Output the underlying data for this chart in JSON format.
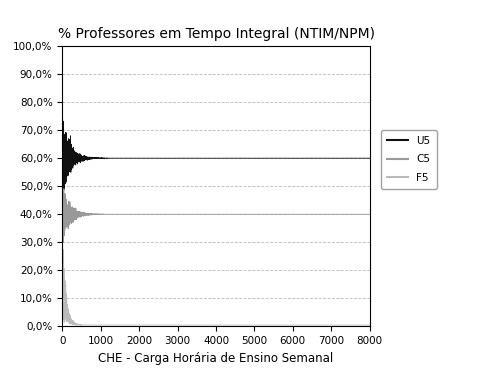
{
  "title": "% Professores em Tempo Integral (NTIM/NPM)",
  "xlabel": "CHE - Carga Horária de Ensino Semanal",
  "xlim": [
    0,
    8000
  ],
  "ylim": [
    0.0,
    1.0
  ],
  "yticks": [
    0.0,
    0.1,
    0.2,
    0.3,
    0.4,
    0.5,
    0.6,
    0.7,
    0.8,
    0.9,
    1.0
  ],
  "ytick_labels": [
    "0,0%",
    "10,0%",
    "20,0%",
    "30,0%",
    "40,0%",
    "50,0%",
    "60,0%",
    "70,0%",
    "80,0%",
    "90,0%",
    "100,0%"
  ],
  "xticks": [
    0,
    1000,
    2000,
    3000,
    4000,
    5000,
    6000,
    7000,
    8000
  ],
  "series": [
    {
      "label": "U5",
      "color": "#111111",
      "linewidth": 0.6
    },
    {
      "label": "C5",
      "color": "#999999",
      "linewidth": 0.6
    },
    {
      "label": "F5",
      "color": "#bbbbbb",
      "linewidth": 0.6
    }
  ],
  "legend_labels": [
    "U5",
    "C5",
    "F5"
  ],
  "legend_colors": [
    "#111111",
    "#999999",
    "#bbbbbb"
  ],
  "background_color": "#ffffff",
  "grid_color": "#aaaaaa",
  "grid_linestyle": "--",
  "title_fontsize": 10,
  "tick_fontsize": 7.5,
  "label_fontsize": 8.5
}
